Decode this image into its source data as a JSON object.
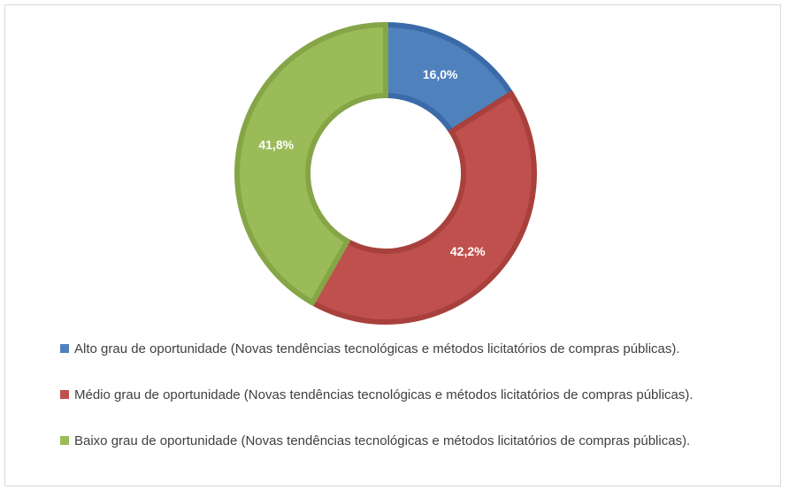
{
  "chart_data": {
    "type": "donut",
    "categories": [
      "Alto grau de oportunidade (Novas tendências tecnológicas e métodos licitatórios de compras públicas).",
      "Médio grau de oportunidade (Novas tendências tecnológicas e métodos licitatórios de compras públicas).",
      "Baixo grau de oportunidade (Novas tendências tecnológicas e métodos licitatórios de compras públicas)."
    ],
    "values": [
      16.0,
      42.2,
      41.8
    ],
    "value_labels": [
      "16,0%",
      "42,2%",
      "41,8%"
    ],
    "colors": [
      "#4f81bd",
      "#c0504d",
      "#9bbb59"
    ],
    "border_colors": [
      "#3a6aa8",
      "#a8403c",
      "#85a547"
    ],
    "legend_position": "bottom"
  }
}
